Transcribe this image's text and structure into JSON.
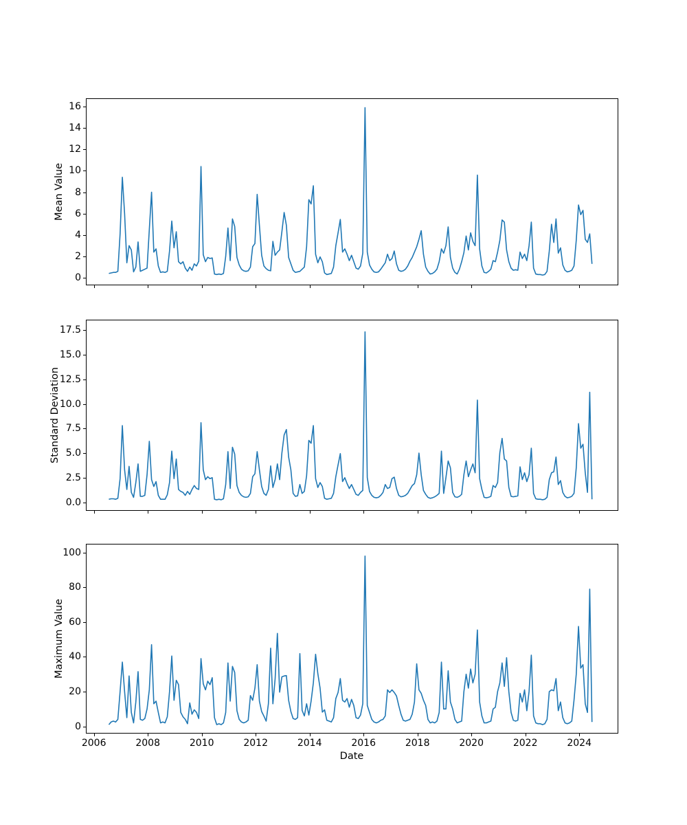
{
  "figure": {
    "background": "#ffffff",
    "line_color": "#1f77b4",
    "n_subplots": 3,
    "grid": false,
    "legend": "none"
  },
  "chart_data": [
    {
      "type": "line",
      "ylabel": "Mean Value",
      "series_name": "mean",
      "line_color": "#1f77b4",
      "x_start": "2006-07",
      "x_end": "2024-06",
      "x_frequency": "monthly",
      "xlim": [
        2005.7,
        2025.5
      ],
      "ylim": [
        0,
        16
      ],
      "ytick_labels": [
        "0",
        "2",
        "4",
        "6",
        "8",
        "10",
        "12",
        "14",
        "16"
      ],
      "ytick_values": [
        0,
        2,
        4,
        6,
        8,
        10,
        12,
        14,
        16
      ],
      "values": [
        0.4,
        0.45,
        0.5,
        0.5,
        0.6,
        4.1,
        9.4,
        6.0,
        1.4,
        3.0,
        2.6,
        0.55,
        1.0,
        3.35,
        0.6,
        0.7,
        0.8,
        0.9,
        4.5,
        8.0,
        2.4,
        2.7,
        1.1,
        0.5,
        0.55,
        0.5,
        0.6,
        2.5,
        5.3,
        2.8,
        4.3,
        1.5,
        1.3,
        1.5,
        0.9,
        0.6,
        1.0,
        0.7,
        1.3,
        1.1,
        1.55,
        10.4,
        2.15,
        1.5,
        1.9,
        1.8,
        1.85,
        0.35,
        0.3,
        0.35,
        0.3,
        0.4,
        2.0,
        4.65,
        1.6,
        5.5,
        4.8,
        1.9,
        1.2,
        0.8,
        0.65,
        0.6,
        0.65,
        1.0,
        2.9,
        3.2,
        7.8,
        4.9,
        2.1,
        1.1,
        0.85,
        0.7,
        0.65,
        3.4,
        2.1,
        2.4,
        2.6,
        4.3,
        6.1,
        4.9,
        1.9,
        1.3,
        0.7,
        0.5,
        0.55,
        0.6,
        0.8,
        1.0,
        2.9,
        7.3,
        6.9,
        8.6,
        2.2,
        1.4,
        1.95,
        1.5,
        0.45,
        0.3,
        0.35,
        0.4,
        1.0,
        3.0,
        4.2,
        5.45,
        2.4,
        2.7,
        2.2,
        1.6,
        2.1,
        1.5,
        0.9,
        0.8,
        1.1,
        2.3,
        15.9,
        2.4,
        1.2,
        0.8,
        0.55,
        0.5,
        0.55,
        0.8,
        1.1,
        1.4,
        2.2,
        1.6,
        1.8,
        2.5,
        1.3,
        0.7,
        0.6,
        0.65,
        0.8,
        1.1,
        1.55,
        1.9,
        2.4,
        2.9,
        3.6,
        4.4,
        2.2,
        1.0,
        0.6,
        0.35,
        0.4,
        0.55,
        0.8,
        1.5,
        2.7,
        2.3,
        3.0,
        4.75,
        1.9,
        0.9,
        0.5,
        0.35,
        0.8,
        1.5,
        2.35,
        3.9,
        2.6,
        4.2,
        3.4,
        3.0,
        9.6,
        2.7,
        1.1,
        0.5,
        0.45,
        0.6,
        0.8,
        1.6,
        1.5,
        2.4,
        3.5,
        5.4,
        5.2,
        2.6,
        1.5,
        0.9,
        0.7,
        0.75,
        0.7,
        2.4,
        1.8,
        2.2,
        1.6,
        3.0,
        5.2,
        0.9,
        0.35,
        0.3,
        0.3,
        0.25,
        0.3,
        0.6,
        2.5,
        5.0,
        3.3,
        5.5,
        2.3,
        2.8,
        1.2,
        0.7,
        0.55,
        0.6,
        0.7,
        1.1,
        3.5,
        6.8,
        5.9,
        6.3,
        3.6,
        3.3,
        4.1,
        1.3
      ]
    },
    {
      "type": "line",
      "ylabel": "Standard Deviation",
      "series_name": "std",
      "line_color": "#1f77b4",
      "x_start": "2006-07",
      "x_end": "2024-06",
      "x_frequency": "monthly",
      "xlim": [
        2005.7,
        2025.5
      ],
      "ylim": [
        0,
        17.5
      ],
      "ytick_labels": [
        "0.0",
        "2.5",
        "5.0",
        "7.5",
        "10.0",
        "12.5",
        "15.0",
        "17.5"
      ],
      "ytick_values": [
        0,
        2.5,
        5,
        7.5,
        10,
        12.5,
        15,
        17.5
      ],
      "values": [
        0.3,
        0.35,
        0.35,
        0.3,
        0.4,
        2.4,
        7.8,
        3.3,
        1.3,
        3.65,
        1.0,
        0.5,
        2.0,
        3.9,
        0.6,
        0.6,
        0.7,
        2.8,
        6.2,
        2.3,
        1.6,
        2.1,
        0.7,
        0.3,
        0.3,
        0.3,
        0.75,
        2.0,
        5.2,
        2.4,
        4.4,
        1.3,
        1.1,
        1.0,
        0.7,
        1.1,
        0.8,
        1.3,
        1.7,
        1.4,
        1.3,
        8.1,
        3.3,
        2.3,
        2.6,
        2.4,
        2.5,
        0.3,
        0.25,
        0.3,
        0.25,
        0.35,
        1.8,
        5.15,
        1.4,
        5.6,
        4.9,
        1.7,
        1.0,
        0.7,
        0.55,
        0.5,
        0.55,
        0.9,
        2.6,
        2.9,
        5.15,
        3.3,
        1.6,
        0.9,
        0.7,
        1.3,
        3.7,
        1.5,
        2.3,
        3.9,
        2.3,
        5.0,
        6.85,
        7.4,
        4.6,
        3.3,
        0.9,
        0.6,
        0.65,
        1.8,
        0.9,
        1.1,
        2.7,
        6.3,
        6.0,
        7.8,
        2.4,
        1.5,
        2.0,
        1.6,
        0.4,
        0.3,
        0.35,
        0.4,
        0.9,
        2.6,
        3.8,
        4.95,
        2.1,
        2.5,
        1.9,
        1.4,
        1.8,
        1.3,
        0.8,
        0.7,
        1.0,
        1.2,
        17.35,
        2.5,
        1.1,
        0.7,
        0.5,
        0.45,
        0.5,
        0.7,
        1.0,
        1.8,
        1.4,
        1.5,
        2.4,
        2.55,
        1.4,
        0.7,
        0.55,
        0.6,
        0.7,
        0.9,
        1.3,
        1.7,
        1.9,
        2.8,
        5.0,
        2.8,
        1.2,
        0.8,
        0.5,
        0.4,
        0.45,
        0.55,
        0.7,
        0.9,
        5.2,
        0.9,
        2.5,
        4.2,
        3.5,
        1.0,
        0.55,
        0.5,
        0.6,
        0.8,
        2.8,
        4.2,
        2.6,
        3.3,
        3.9,
        3.0,
        10.4,
        2.4,
        1.3,
        0.5,
        0.45,
        0.5,
        0.6,
        1.7,
        1.5,
        2.0,
        5.05,
        6.5,
        4.4,
        4.2,
        1.5,
        0.6,
        0.55,
        0.6,
        0.65,
        3.6,
        2.3,
        3.0,
        2.1,
        2.8,
        5.5,
        0.9,
        0.35,
        0.3,
        0.3,
        0.25,
        0.3,
        0.5,
        2.3,
        3.0,
        3.1,
        4.6,
        1.8,
        2.2,
        1.0,
        0.6,
        0.45,
        0.5,
        0.6,
        0.9,
        3.5,
        8.0,
        5.5,
        5.9,
        3.0,
        1.0,
        11.2,
        0.3
      ]
    },
    {
      "type": "line",
      "ylabel": "Maximum Value",
      "xlabel": "Date",
      "series_name": "max",
      "line_color": "#1f77b4",
      "x_start": "2006-07",
      "x_end": "2024-06",
      "x_frequency": "monthly",
      "xlim": [
        2005.7,
        2025.5
      ],
      "ylim": [
        0,
        100
      ],
      "ytick_labels": [
        "0",
        "20",
        "40",
        "60",
        "80",
        "100"
      ],
      "ytick_values": [
        0,
        20,
        40,
        60,
        80,
        100
      ],
      "xtick_labels": [
        "2006",
        "2008",
        "2010",
        "2012",
        "2014",
        "2016",
        "2018",
        "2020",
        "2022",
        "2024"
      ],
      "xtick_values": [
        2006,
        2008,
        2010,
        2012,
        2014,
        2016,
        2018,
        2020,
        2022,
        2024
      ],
      "values": [
        1.0,
        2.5,
        3.0,
        2.5,
        4.0,
        20.0,
        37.0,
        20.0,
        5.0,
        29.0,
        8.0,
        2.0,
        14.0,
        31.5,
        4.0,
        3.5,
        4.5,
        10.0,
        21.0,
        47.0,
        13.0,
        14.5,
        8.0,
        2.0,
        2.5,
        2.0,
        5.5,
        20.0,
        40.5,
        15.0,
        26.5,
        24.0,
        8.0,
        5.5,
        4.0,
        1.5,
        13.5,
        7.0,
        9.5,
        8.0,
        4.5,
        39.0,
        24.5,
        21.0,
        26.0,
        24.0,
        28.0,
        5.0,
        1.0,
        1.5,
        1.0,
        2.0,
        8.0,
        36.5,
        14.5,
        34.5,
        31.0,
        9.0,
        4.0,
        2.5,
        2.0,
        2.5,
        3.5,
        17.7,
        15.0,
        22.0,
        35.5,
        14.5,
        8.5,
        5.9,
        3.0,
        13.0,
        45.0,
        13.0,
        27.5,
        53.5,
        19.7,
        28.5,
        29.0,
        29.2,
        15.0,
        8.5,
        4.5,
        4.0,
        5.0,
        41.9,
        9.2,
        6.0,
        13.0,
        6.5,
        14.5,
        25.0,
        41.5,
        30.3,
        22.0,
        8.2,
        9.5,
        3.5,
        3.0,
        2.5,
        5.0,
        16.0,
        19.5,
        27.5,
        15.0,
        14.0,
        16.0,
        11.0,
        15.5,
        12.0,
        5.0,
        4.5,
        6.5,
        13.0,
        98.0,
        12.0,
        8.0,
        4.0,
        2.5,
        2.0,
        2.5,
        3.5,
        4.0,
        6.0,
        21.0,
        19.5,
        21.0,
        19.5,
        17.5,
        12.0,
        7.0,
        3.5,
        3.0,
        3.5,
        4.0,
        7.0,
        14.0,
        36.0,
        21.0,
        19.0,
        15.0,
        12.0,
        4.0,
        2.0,
        2.5,
        2.0,
        3.0,
        8.0,
        37.0,
        10.0,
        10.0,
        32.0,
        14.0,
        10.0,
        4.0,
        2.0,
        2.5,
        3.0,
        20.0,
        30.0,
        22.0,
        33.0,
        25.0,
        30.0,
        55.5,
        14.0,
        6.0,
        2.0,
        2.0,
        2.5,
        3.0,
        10.0,
        11.0,
        20.0,
        25.0,
        36.5,
        23.0,
        39.5,
        20.0,
        8.0,
        3.5,
        3.0,
        3.5,
        19.0,
        14.0,
        21.0,
        9.0,
        20.0,
        41.0,
        6.0,
        2.0,
        1.5,
        1.5,
        1.0,
        1.5,
        4.0,
        20.0,
        21.0,
        20.5,
        27.5,
        9.0,
        14.0,
        5.0,
        2.0,
        1.5,
        2.0,
        3.0,
        15.0,
        30.0,
        57.5,
        33.5,
        35.5,
        13.0,
        8.0,
        79.0,
        2.5
      ]
    }
  ]
}
